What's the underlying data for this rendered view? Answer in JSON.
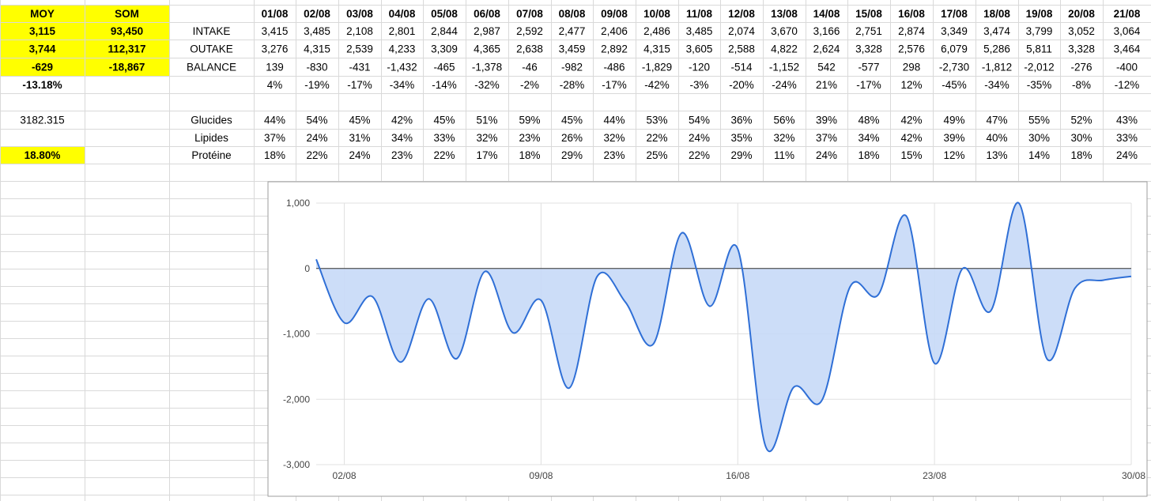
{
  "colors": {
    "highlight": "#ffff00",
    "grid": "#d9d9d9",
    "series_line": "#2f6fd6",
    "series_fill": "#c7d9f7"
  },
  "summary": {
    "moy_label": "MOY",
    "som_label": "SOM",
    "intake_moy": "3,115",
    "intake_som": "93,450",
    "outake_moy": "3,744",
    "outake_som": "112,317",
    "balance_moy": "-629",
    "balance_som": "-18,867",
    "pct": "-13.18%",
    "avg_raw": "3182.315",
    "protein_pct": "18.80%"
  },
  "table": {
    "dates": [
      "01/08",
      "02/08",
      "03/08",
      "04/08",
      "05/08",
      "06/08",
      "07/08",
      "08/08",
      "09/08",
      "10/08",
      "11/08",
      "12/08",
      "13/08",
      "14/08",
      "15/08",
      "16/08",
      "17/08",
      "18/08",
      "19/08",
      "20/08",
      "21/08"
    ],
    "rows": [
      {
        "label": "INTAKE",
        "values": [
          "3,415",
          "3,485",
          "2,108",
          "2,801",
          "2,844",
          "2,987",
          "2,592",
          "2,477",
          "2,406",
          "2,486",
          "3,485",
          "2,074",
          "3,670",
          "3,166",
          "2,751",
          "2,874",
          "3,349",
          "3,474",
          "3,799",
          "3,052",
          "3,064"
        ]
      },
      {
        "label": "OUTAKE",
        "values": [
          "3,276",
          "4,315",
          "2,539",
          "4,233",
          "3,309",
          "4,365",
          "2,638",
          "3,459",
          "2,892",
          "4,315",
          "3,605",
          "2,588",
          "4,822",
          "2,624",
          "3,328",
          "2,576",
          "6,079",
          "5,286",
          "5,811",
          "3,328",
          "3,464"
        ]
      },
      {
        "label": "BALANCE",
        "values": [
          "139",
          "-830",
          "-431",
          "-1,432",
          "-465",
          "-1,378",
          "-46",
          "-982",
          "-486",
          "-1,829",
          "-120",
          "-514",
          "-1,152",
          "542",
          "-577",
          "298",
          "-2,730",
          "-1,812",
          "-2,012",
          "-276",
          "-400"
        ]
      },
      {
        "label": "",
        "values": [
          "4%",
          "-19%",
          "-17%",
          "-34%",
          "-14%",
          "-32%",
          "-2%",
          "-28%",
          "-17%",
          "-42%",
          "-3%",
          "-20%",
          "-24%",
          "21%",
          "-17%",
          "12%",
          "-45%",
          "-34%",
          "-35%",
          "-8%",
          "-12%"
        ]
      },
      {
        "label": "",
        "values": []
      },
      {
        "label": "Glucides",
        "values": [
          "44%",
          "54%",
          "45%",
          "42%",
          "45%",
          "51%",
          "59%",
          "45%",
          "44%",
          "53%",
          "54%",
          "36%",
          "56%",
          "39%",
          "48%",
          "42%",
          "49%",
          "47%",
          "55%",
          "52%",
          "43%"
        ]
      },
      {
        "label": "Lipides",
        "values": [
          "37%",
          "24%",
          "31%",
          "34%",
          "33%",
          "32%",
          "23%",
          "26%",
          "32%",
          "22%",
          "24%",
          "35%",
          "32%",
          "37%",
          "34%",
          "42%",
          "39%",
          "40%",
          "30%",
          "30%",
          "33%"
        ]
      },
      {
        "label": "Protéine",
        "values": [
          "18%",
          "22%",
          "24%",
          "23%",
          "22%",
          "17%",
          "18%",
          "29%",
          "23%",
          "25%",
          "22%",
          "29%",
          "11%",
          "24%",
          "18%",
          "15%",
          "12%",
          "13%",
          "14%",
          "18%",
          "24%"
        ]
      }
    ]
  },
  "chart_data": {
    "type": "area",
    "x_ticks": [
      "02/08",
      "09/08",
      "16/08",
      "23/08",
      "30/08"
    ],
    "y_ticks": [
      "1,000",
      "0",
      "-1,000",
      "-2,000",
      "-3,000"
    ],
    "ylim": [
      -3000,
      1000
    ],
    "xlim": [
      1,
      30
    ],
    "grid": true,
    "legend": "none",
    "x": [
      1,
      2,
      3,
      4,
      5,
      6,
      7,
      8,
      9,
      10,
      11,
      12,
      13,
      14,
      15,
      16,
      17,
      18,
      19,
      20,
      21,
      22,
      23,
      24,
      25,
      26,
      27,
      28,
      29,
      30
    ],
    "values": [
      139,
      -830,
      -431,
      -1432,
      -465,
      -1378,
      -46,
      -982,
      -486,
      -1829,
      -120,
      -514,
      -1152,
      542,
      -577,
      298,
      -2730,
      -1812,
      -2012,
      -276,
      -400,
      800,
      -1450,
      0,
      -650,
      1000,
      -1380,
      -300,
      -180,
      -120
    ]
  }
}
